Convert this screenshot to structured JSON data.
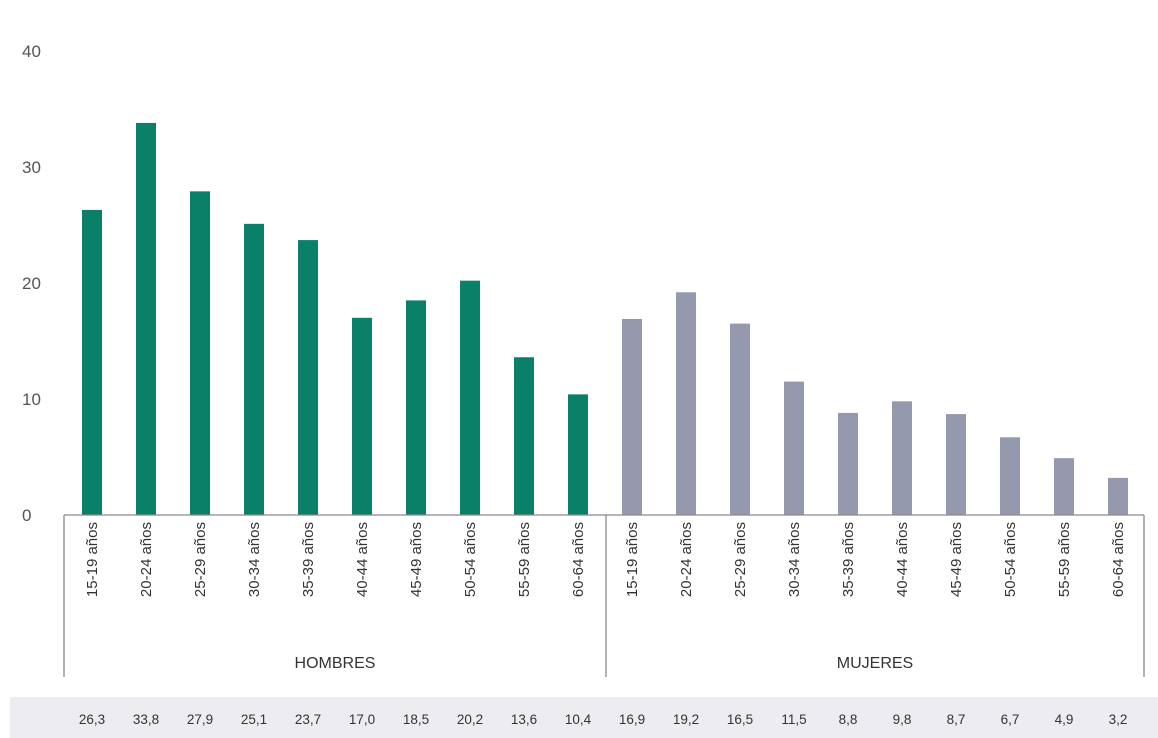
{
  "chart_data": {
    "type": "bar",
    "y_ticks": [
      "0",
      "10",
      "20",
      "30",
      "40"
    ],
    "ylim": [
      0,
      40
    ],
    "grid": false,
    "categories": [
      "15-19 años",
      "20-24 años",
      "25-29 años",
      "30-34 años",
      "35-39 años",
      "40-44 años",
      "45-49 años",
      "50-54 años",
      "55-59 años",
      "60-64 años"
    ],
    "series": [
      {
        "name": "HOMBRES",
        "color": "#0b8068",
        "values": [
          26.3,
          33.8,
          27.9,
          25.1,
          23.7,
          17.0,
          18.5,
          20.2,
          13.6,
          10.4
        ],
        "labels": [
          "26,3",
          "33,8",
          "27,9",
          "25,1",
          "23,7",
          "17,0",
          "18,5",
          "20,2",
          "13,6",
          "10,4"
        ]
      },
      {
        "name": "MUJERES",
        "color": "#9599ae",
        "values": [
          16.9,
          19.2,
          16.5,
          11.5,
          8.8,
          9.8,
          8.7,
          6.7,
          4.9,
          3.2
        ],
        "labels": [
          "16,9",
          "19,2",
          "16,5",
          "11,5",
          "8,8",
          "9,8",
          "8,7",
          "6,7",
          "4,9",
          "3,2"
        ]
      }
    ],
    "table_background": "#ededf1"
  }
}
